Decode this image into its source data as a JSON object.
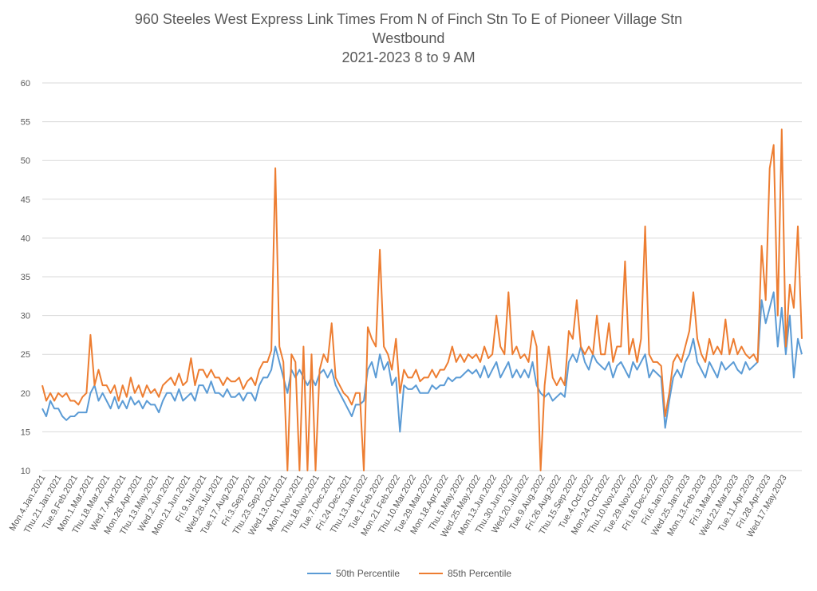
{
  "chart_data": {
    "type": "line",
    "title_lines": [
      "960 Steeles West Express Link Times From N of Finch Stn To E of Pioneer Village Stn",
      "Westbound",
      "2021-2023 8 to 9 AM"
    ],
    "xlabel": "",
    "ylabel": "",
    "ylim": [
      10,
      60
    ],
    "yticks": [
      "10",
      "15",
      "20",
      "25",
      "30",
      "35",
      "40",
      "45",
      "50",
      "55",
      "60"
    ],
    "grid": true,
    "legend_position": "bottom",
    "x_tick_labels": [
      "Mon.4.Jan.2021",
      "Thu.21.Jan.2021",
      "Tue.9.Feb.2021",
      "Mon.1.Mar.2021",
      "Thu.18.Mar.2021",
      "Wed.7.Apr.2021",
      "Mon.26.Apr.2021",
      "Thu.13.May.2021",
      "Wed.2.Jun.2021",
      "Mon.21.Jun.2021",
      "Fri.9.Jul.2021",
      "Wed.28.Jul.2021",
      "Tue.17.Aug.2021",
      "Fri.3.Sep.2021",
      "Thu.23.Sep.2021",
      "Wed.13.Oct.2021",
      "Mon.1.Nov.2021",
      "Thu.18.Nov.2021",
      "Tue.7.Dec.2021",
      "Fri.24.Dec.2021",
      "Thu.13.Jan.2022",
      "Tue.1.Feb.2022",
      "Mon.21.Feb.2022",
      "Thu.10.Mar.2022",
      "Tue.29.Mar.2022",
      "Mon.18.Apr.2022",
      "Thu.5.May.2022",
      "Wed.25.May.2022",
      "Mon.13.Jun.2022",
      "Thu.30.Jun.2022",
      "Wed.20.Jul.2022",
      "Tue.9.Aug.2022",
      "Fri.26.Aug.2022",
      "Thu.15.Sep.2022",
      "Tue.4.Oct.2022",
      "Mon.24.Oct.2022",
      "Thu.10.Nov.2022",
      "Tue.29.Nov.2022",
      "Fri.16.Dec.2022",
      "Fri.6.Jan.2023",
      "Wed.25.Jan.2023",
      "Mon.13.Feb.2023",
      "Fri.3.Mar.2023",
      "Wed.22.Mar.2023",
      "Tue.11.Apr.2023",
      "Fri.28.Apr.2023",
      "Wed.17.May.2023"
    ],
    "series": [
      {
        "name": "50th Percentile",
        "color": "#5B9BD5",
        "values": [
          18,
          17,
          19,
          18,
          18,
          17,
          16.5,
          17,
          17,
          17.5,
          17.5,
          17.5,
          20,
          21,
          19,
          20,
          19,
          18,
          19.5,
          18,
          19,
          18,
          19.5,
          18.5,
          19,
          18,
          19,
          18.5,
          18.5,
          17.5,
          19,
          20,
          20,
          19,
          20.5,
          19,
          19.5,
          20,
          19,
          21,
          21,
          20,
          21.5,
          20,
          20,
          19.5,
          20.5,
          19.5,
          19.5,
          20,
          19,
          20,
          20,
          19,
          21,
          22,
          22,
          23,
          26,
          24,
          22,
          20,
          23,
          22,
          23,
          22,
          21,
          22,
          21,
          22.5,
          23,
          22,
          23,
          21,
          20,
          19,
          18,
          17,
          18.5,
          18.5,
          19,
          23,
          24,
          22,
          25,
          23,
          24,
          21,
          22,
          15,
          21,
          20.5,
          20.5,
          21,
          20,
          20,
          20,
          21,
          20.5,
          21,
          21,
          22,
          21.5,
          22,
          22,
          22.5,
          23,
          22.5,
          23,
          22,
          23.5,
          22,
          23,
          24,
          22,
          23,
          24,
          22,
          23,
          22,
          23,
          22,
          24,
          21,
          20,
          19.5,
          20,
          19,
          19.5,
          20,
          19.5,
          24,
          25,
          24,
          26,
          24,
          23,
          25,
          24,
          23.5,
          23,
          24,
          22,
          23.5,
          24,
          23,
          22,
          24,
          23,
          24,
          25,
          22,
          23,
          22.5,
          22,
          15.5,
          19,
          22,
          23,
          22,
          24,
          25,
          27,
          24,
          23,
          22,
          24,
          23,
          22,
          24,
          23,
          23.5,
          24,
          23,
          22.5,
          24,
          23,
          23.5,
          24,
          32,
          29,
          31,
          33,
          26,
          31,
          25,
          30,
          22,
          27,
          25
        ]
      },
      {
        "name": "85th Percentile",
        "color": "#ED7D31",
        "values": [
          21,
          19,
          20,
          19,
          20,
          19.5,
          20,
          19,
          19,
          18.5,
          19.5,
          20,
          27.5,
          21,
          23,
          21,
          21,
          20,
          21,
          19,
          21,
          19.5,
          22,
          20,
          21,
          19.5,
          21,
          20,
          20.5,
          19.5,
          21,
          21.5,
          22,
          21,
          22.5,
          21,
          21.5,
          24.5,
          21,
          23,
          23,
          22,
          23,
          22,
          22,
          21,
          22,
          21.5,
          21.5,
          22,
          20.5,
          21.5,
          22,
          21,
          23,
          24,
          24,
          25.5,
          49,
          26,
          24,
          10,
          25,
          24,
          10,
          26,
          10,
          25,
          10,
          23,
          25,
          24,
          29,
          22,
          21,
          20,
          19.5,
          18.5,
          20,
          20,
          10,
          28.5,
          27,
          26,
          38.5,
          26,
          25,
          23,
          27,
          20,
          23,
          22,
          22,
          23,
          21.5,
          22,
          22,
          23,
          22,
          23,
          23,
          24,
          26,
          24,
          25,
          24,
          25,
          24.5,
          25,
          24,
          26,
          24.5,
          25,
          30,
          26,
          25,
          33,
          25,
          26,
          24.5,
          25,
          24,
          28,
          26,
          10,
          21,
          26,
          22,
          21,
          22,
          21,
          28,
          27,
          32,
          26,
          25,
          26,
          25,
          30,
          25,
          25,
          29,
          24,
          26,
          26,
          37,
          25,
          27,
          24,
          27,
          41.5,
          25,
          24,
          24,
          23.5,
          17,
          20,
          24,
          25,
          24,
          26,
          28,
          33,
          27,
          25,
          24,
          27,
          25,
          26,
          25,
          29.5,
          25,
          27,
          25,
          26,
          25,
          24.5,
          25,
          24,
          39,
          32,
          49,
          52,
          30,
          54,
          26,
          34,
          31,
          41.5,
          27
        ]
      }
    ]
  }
}
